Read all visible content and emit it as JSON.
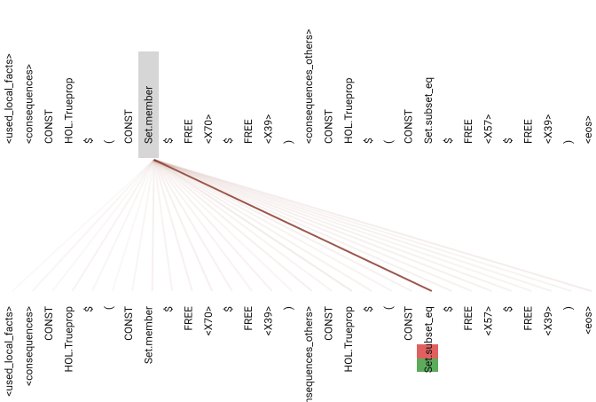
{
  "tokens": [
    "<used_local_facts>",
    "<consequences>",
    "CONST",
    "HOL.Trueprop",
    "$",
    "(",
    "CONST",
    "Set.member",
    "$",
    "FREE",
    "<X70>",
    "$",
    "FREE",
    "<X39>",
    ")",
    "<consequences_others>",
    "CONST",
    "HOL.Trueprop",
    "$",
    "(",
    "CONST",
    "Set.subset_eq",
    "$",
    "FREE",
    "<X57>",
    "$",
    "FREE",
    "<X39>",
    ")",
    "<eos>"
  ],
  "query_index": 7,
  "attention": [
    0.03,
    0.05,
    0.04,
    0.06,
    0.05,
    0.04,
    0.05,
    0.08,
    0.06,
    0.07,
    0.08,
    0.07,
    0.06,
    0.07,
    0.05,
    0.08,
    0.06,
    0.1,
    0.07,
    0.06,
    0.08,
    0.85,
    0.08,
    0.07,
    0.08,
    0.07,
    0.06,
    0.07,
    0.06,
    0.09
  ]
}
